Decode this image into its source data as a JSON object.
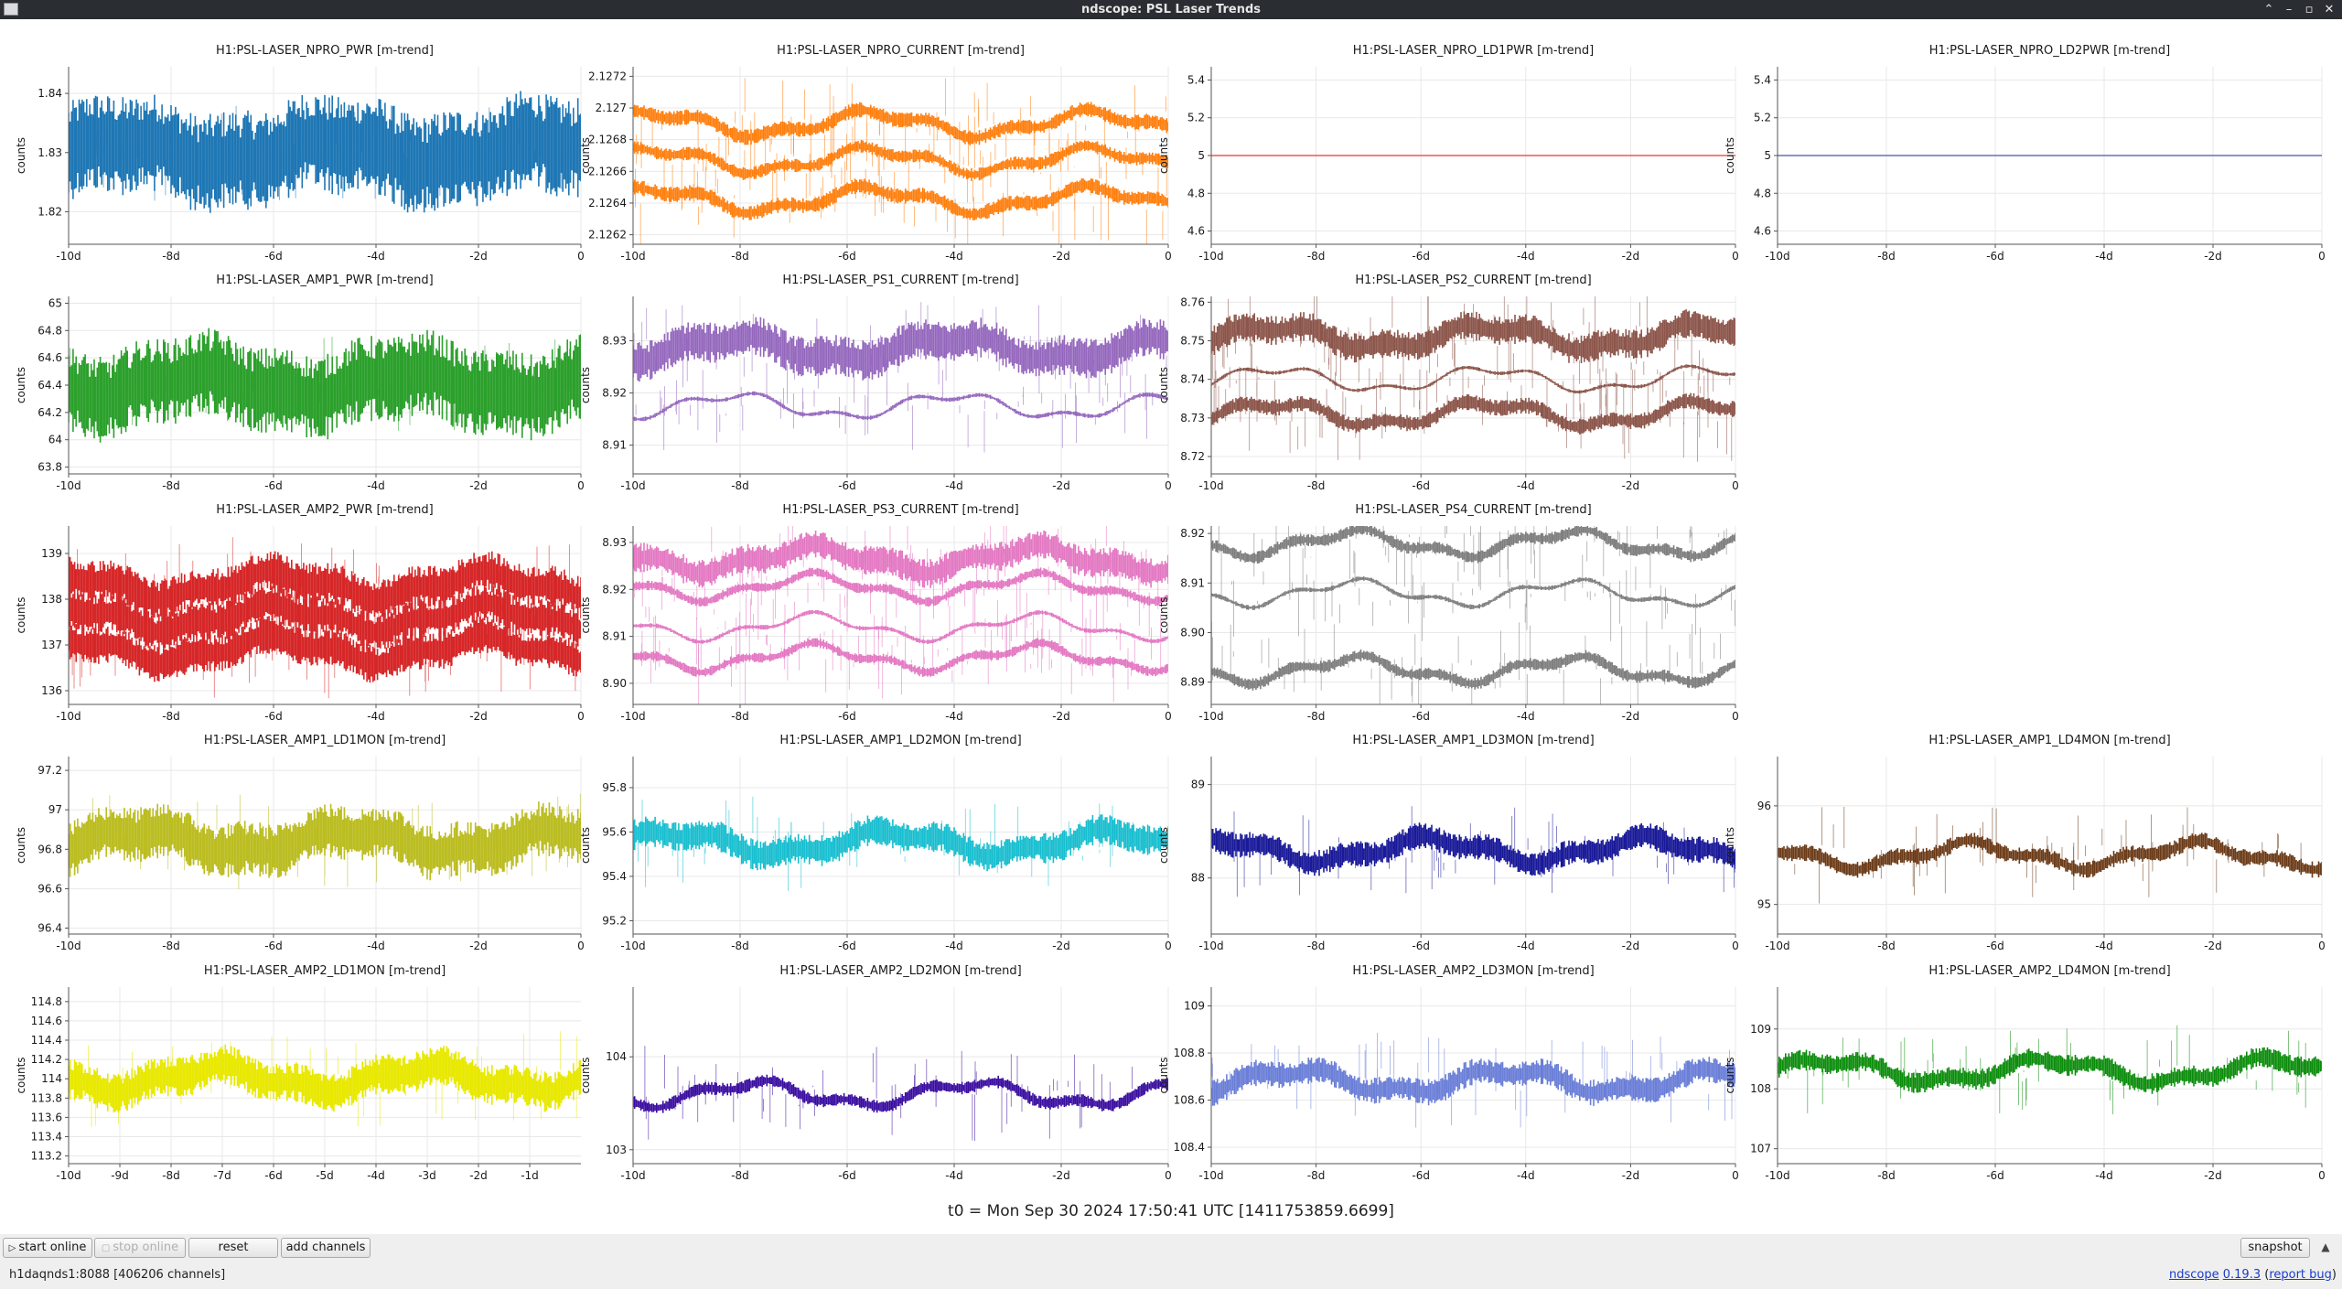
{
  "window": {
    "title": "ndscope: PSL Laser Trends",
    "controls": [
      "⌃",
      "–",
      "▫",
      "✕"
    ]
  },
  "plots": [
    {
      "title": "H1:PSL-LASER_NPRO_PWR [m-trend]",
      "ylabel": "counts",
      "color": "#1f77b4",
      "yticks": [
        "1.84",
        "1.83",
        "1.82"
      ],
      "xticks": [
        "-10d",
        "-8d",
        "-6d",
        "-4d",
        "-2d",
        "0"
      ],
      "ylim": [
        1.8145,
        1.8445
      ],
      "bands": [
        {
          "y": 1.83,
          "w": 0.012
        }
      ]
    },
    {
      "title": "H1:PSL-LASER_NPRO_CURRENT [m-trend]",
      "ylabel": "counts",
      "color": "#ff7f0e",
      "yticks": [
        "2.1272",
        "2.127",
        "2.1268",
        "2.1266",
        "2.1264",
        "2.1262"
      ],
      "xticks": [
        "-10d",
        "-8d",
        "-6d",
        "-4d",
        "-2d",
        "0"
      ],
      "ylim": [
        2.12614,
        2.12726
      ],
      "bands": [
        {
          "y": 2.1269,
          "w": 7e-05
        },
        {
          "y": 2.12667,
          "w": 6e-05
        },
        {
          "y": 2.12642,
          "w": 7e-05
        }
      ]
    },
    {
      "title": "H1:PSL-LASER_NPRO_LD1PWR [m-trend]",
      "ylabel": "counts",
      "color": "#ee3333",
      "yticks": [
        "5.4",
        "5.2",
        "5",
        "4.8",
        "4.6"
      ],
      "xticks": [
        "-10d",
        "-8d",
        "-6d",
        "-4d",
        "-2d",
        "0"
      ],
      "ylim": [
        4.53,
        5.47
      ],
      "flat": 5
    },
    {
      "title": "H1:PSL-LASER_NPRO_LD2PWR [m-trend]",
      "ylabel": "counts",
      "color": "#4455aa",
      "yticks": [
        "5.4",
        "5.2",
        "5",
        "4.8",
        "4.6"
      ],
      "xticks": [
        "-10d",
        "-8d",
        "-6d",
        "-4d",
        "-2d",
        "0"
      ],
      "ylim": [
        4.53,
        5.47
      ],
      "flat": 5
    },
    {
      "title": "H1:PSL-LASER_AMP1_PWR [m-trend]",
      "ylabel": "counts",
      "color": "#2ca02c",
      "yticks": [
        "65",
        "64.8",
        "64.6",
        "64.4",
        "64.2",
        "64",
        "63.8"
      ],
      "xticks": [
        "-10d",
        "-8d",
        "-6d",
        "-4d",
        "-2d",
        "0"
      ],
      "ylim": [
        63.75,
        65.05
      ],
      "bands": [
        {
          "y": 64.4,
          "w": 0.45
        }
      ]
    },
    {
      "title": "H1:PSL-LASER_PS1_CURRENT [m-trend]",
      "ylabel": "counts",
      "color": "#9467bd",
      "yticks": [
        "8.93",
        "8.92",
        "8.91"
      ],
      "xticks": [
        "-10d",
        "-8d",
        "-6d",
        "-4d",
        "-2d",
        "0"
      ],
      "ylim": [
        8.9045,
        8.9385
      ],
      "bands": [
        {
          "y": 8.9285,
          "w": 0.0055
        },
        {
          "y": 8.9175,
          "w": 0.0006
        }
      ]
    },
    {
      "title": "H1:PSL-LASER_PS2_CURRENT [m-trend]",
      "ylabel": "counts",
      "color": "#8c564b",
      "yticks": [
        "8.76",
        "8.75",
        "8.74",
        "8.73",
        "8.72"
      ],
      "xticks": [
        "-10d",
        "-8d",
        "-6d",
        "-4d",
        "-2d",
        "0"
      ],
      "ylim": [
        8.7155,
        8.7615
      ],
      "bands": [
        {
          "y": 8.751,
          "w": 0.0055
        },
        {
          "y": 8.74,
          "w": 0.0007
        },
        {
          "y": 8.731,
          "w": 0.003
        }
      ]
    },
    null,
    {
      "title": "H1:PSL-LASER_AMP2_PWR [m-trend]",
      "ylabel": "counts",
      "color": "#d62728",
      "yticks": [
        "139",
        "138",
        "137",
        "136"
      ],
      "xticks": [
        "-10d",
        "-8d",
        "-6d",
        "-4d",
        "-2d",
        "0"
      ],
      "ylim": [
        135.7,
        139.6
      ],
      "bands": [
        {
          "y": 138.3,
          "w": 0.65
        },
        {
          "y": 137.6,
          "w": 0.6
        },
        {
          "y": 136.9,
          "w": 0.6
        }
      ]
    },
    {
      "title": "H1:PSL-LASER_PS3_CURRENT [m-trend]",
      "ylabel": "counts",
      "color": "#e377c2",
      "yticks": [
        "8.93",
        "8.92",
        "8.91",
        "8.90"
      ],
      "xticks": [
        "-10d",
        "-8d",
        "-6d",
        "-4d",
        "-2d",
        "0"
      ],
      "ylim": [
        8.8955,
        8.9335
      ],
      "bands": [
        {
          "y": 8.9265,
          "w": 0.0045
        },
        {
          "y": 8.9205,
          "w": 0.0015
        },
        {
          "y": 8.912,
          "w": 0.0007
        },
        {
          "y": 8.9055,
          "w": 0.0015
        }
      ]
    },
    {
      "title": "H1:PSL-LASER_PS4_CURRENT [m-trend]",
      "ylabel": "counts",
      "color": "#7f7f7f",
      "yticks": [
        "8.92",
        "8.91",
        "8.90",
        "8.89"
      ],
      "xticks": [
        "-10d",
        "-8d",
        "-6d",
        "-4d",
        "-2d",
        "0"
      ],
      "ylim": [
        8.8855,
        8.9215
      ],
      "bands": [
        {
          "y": 8.918,
          "w": 0.0018
        },
        {
          "y": 8.908,
          "w": 0.0007
        },
        {
          "y": 8.8925,
          "w": 0.0018
        }
      ]
    },
    null,
    {
      "title": "H1:PSL-LASER_AMP1_LD1MON [m-trend]",
      "ylabel": "counts",
      "color": "#bcbd22",
      "yticks": [
        "97.2",
        "97",
        "96.8",
        "96.6",
        "96.4"
      ],
      "xticks": [
        "-10d",
        "-8d",
        "-6d",
        "-4d",
        "-2d",
        "0"
      ],
      "ylim": [
        96.37,
        97.27
      ],
      "bands": [
        {
          "y": 96.84,
          "w": 0.2
        }
      ]
    },
    {
      "title": "H1:PSL-LASER_AMP1_LD2MON [m-trend]",
      "ylabel": "counts",
      "color": "#17becf",
      "yticks": [
        "95.8",
        "95.6",
        "95.4",
        "95.2"
      ],
      "xticks": [
        "-10d",
        "-8d",
        "-6d",
        "-4d",
        "-2d",
        "0"
      ],
      "ylim": [
        95.14,
        95.94
      ],
      "bands": [
        {
          "y": 95.55,
          "w": 0.1
        }
      ]
    },
    {
      "title": "H1:PSL-LASER_AMP1_LD3MON [m-trend]",
      "ylabel": "counts",
      "color": "#1a1a99",
      "yticks": [
        "89",
        "88"
      ],
      "xticks": [
        "-10d",
        "-8d",
        "-6d",
        "-4d",
        "-2d",
        "0"
      ],
      "ylim": [
        87.4,
        89.3
      ],
      "bands": [
        {
          "y": 88.3,
          "w": 0.2
        }
      ]
    },
    {
      "title": "H1:PSL-LASER_AMP1_LD4MON [m-trend]",
      "ylabel": "counts",
      "color": "#6b3a17",
      "yticks": [
        "96",
        "95"
      ],
      "xticks": [
        "-10d",
        "-8d",
        "-6d",
        "-4d",
        "-2d",
        "0"
      ],
      "ylim": [
        94.7,
        96.5
      ],
      "bands": [
        {
          "y": 95.5,
          "w": 0.12
        }
      ]
    },
    {
      "title": "H1:PSL-LASER_AMP2_LD1MON [m-trend]",
      "ylabel": "counts",
      "color": "#e8e800",
      "yticks": [
        "114.8",
        "114.6",
        "114.4",
        "114.2",
        "114",
        "113.8",
        "113.6",
        "113.4",
        "113.2"
      ],
      "xticks": [
        "-10d",
        "-9d",
        "-8d",
        "-7d",
        "-6d",
        "-5d",
        "-4d",
        "-3d",
        "-2d",
        "-1d"
      ],
      "ylim": [
        113.12,
        114.95
      ],
      "bands": [
        {
          "y": 114.0,
          "w": 0.3
        }
      ]
    },
    {
      "title": "H1:PSL-LASER_AMP2_LD2MON [m-trend]",
      "ylabel": "counts",
      "color": "#3a0ea0",
      "yticks": [
        "104",
        "103"
      ],
      "xticks": [
        "-10d",
        "-8d",
        "-6d",
        "-4d",
        "-2d",
        "0"
      ],
      "ylim": [
        102.85,
        104.75
      ],
      "bands": [
        {
          "y": 103.6,
          "w": 0.1
        }
      ]
    },
    {
      "title": "H1:PSL-LASER_AMP2_LD3MON [m-trend]",
      "ylabel": "counts",
      "color": "#6b7fd7",
      "yticks": [
        "109",
        "108.8",
        "108.6",
        "108.4"
      ],
      "xticks": [
        "-10d",
        "-8d",
        "-6d",
        "-4d",
        "-2d",
        "0"
      ],
      "ylim": [
        108.33,
        109.08
      ],
      "bands": [
        {
          "y": 108.68,
          "w": 0.08
        }
      ]
    },
    {
      "title": "H1:PSL-LASER_AMP2_LD4MON [m-trend]",
      "ylabel": "counts",
      "color": "#0b8c0b",
      "yticks": [
        "109",
        "108",
        "107"
      ],
      "xticks": [
        "-10d",
        "-8d",
        "-6d",
        "-4d",
        "-2d",
        "0"
      ],
      "ylim": [
        106.75,
        109.7
      ],
      "bands": [
        {
          "y": 108.3,
          "w": 0.25
        }
      ]
    }
  ],
  "t0_label": "t0 = Mon Sep 30 2024 17:50:41 UTC [1411753859.6699]",
  "toolbar": {
    "start_online": "start online",
    "stop_online": "stop online",
    "reset": "reset",
    "add_channels": "add channels",
    "snapshot": "snapshot"
  },
  "status": {
    "server": "h1daqnds1:8088  [406206 channels]",
    "app_name": "ndscope",
    "version": "0.19.3",
    "report_bug": "report bug"
  }
}
